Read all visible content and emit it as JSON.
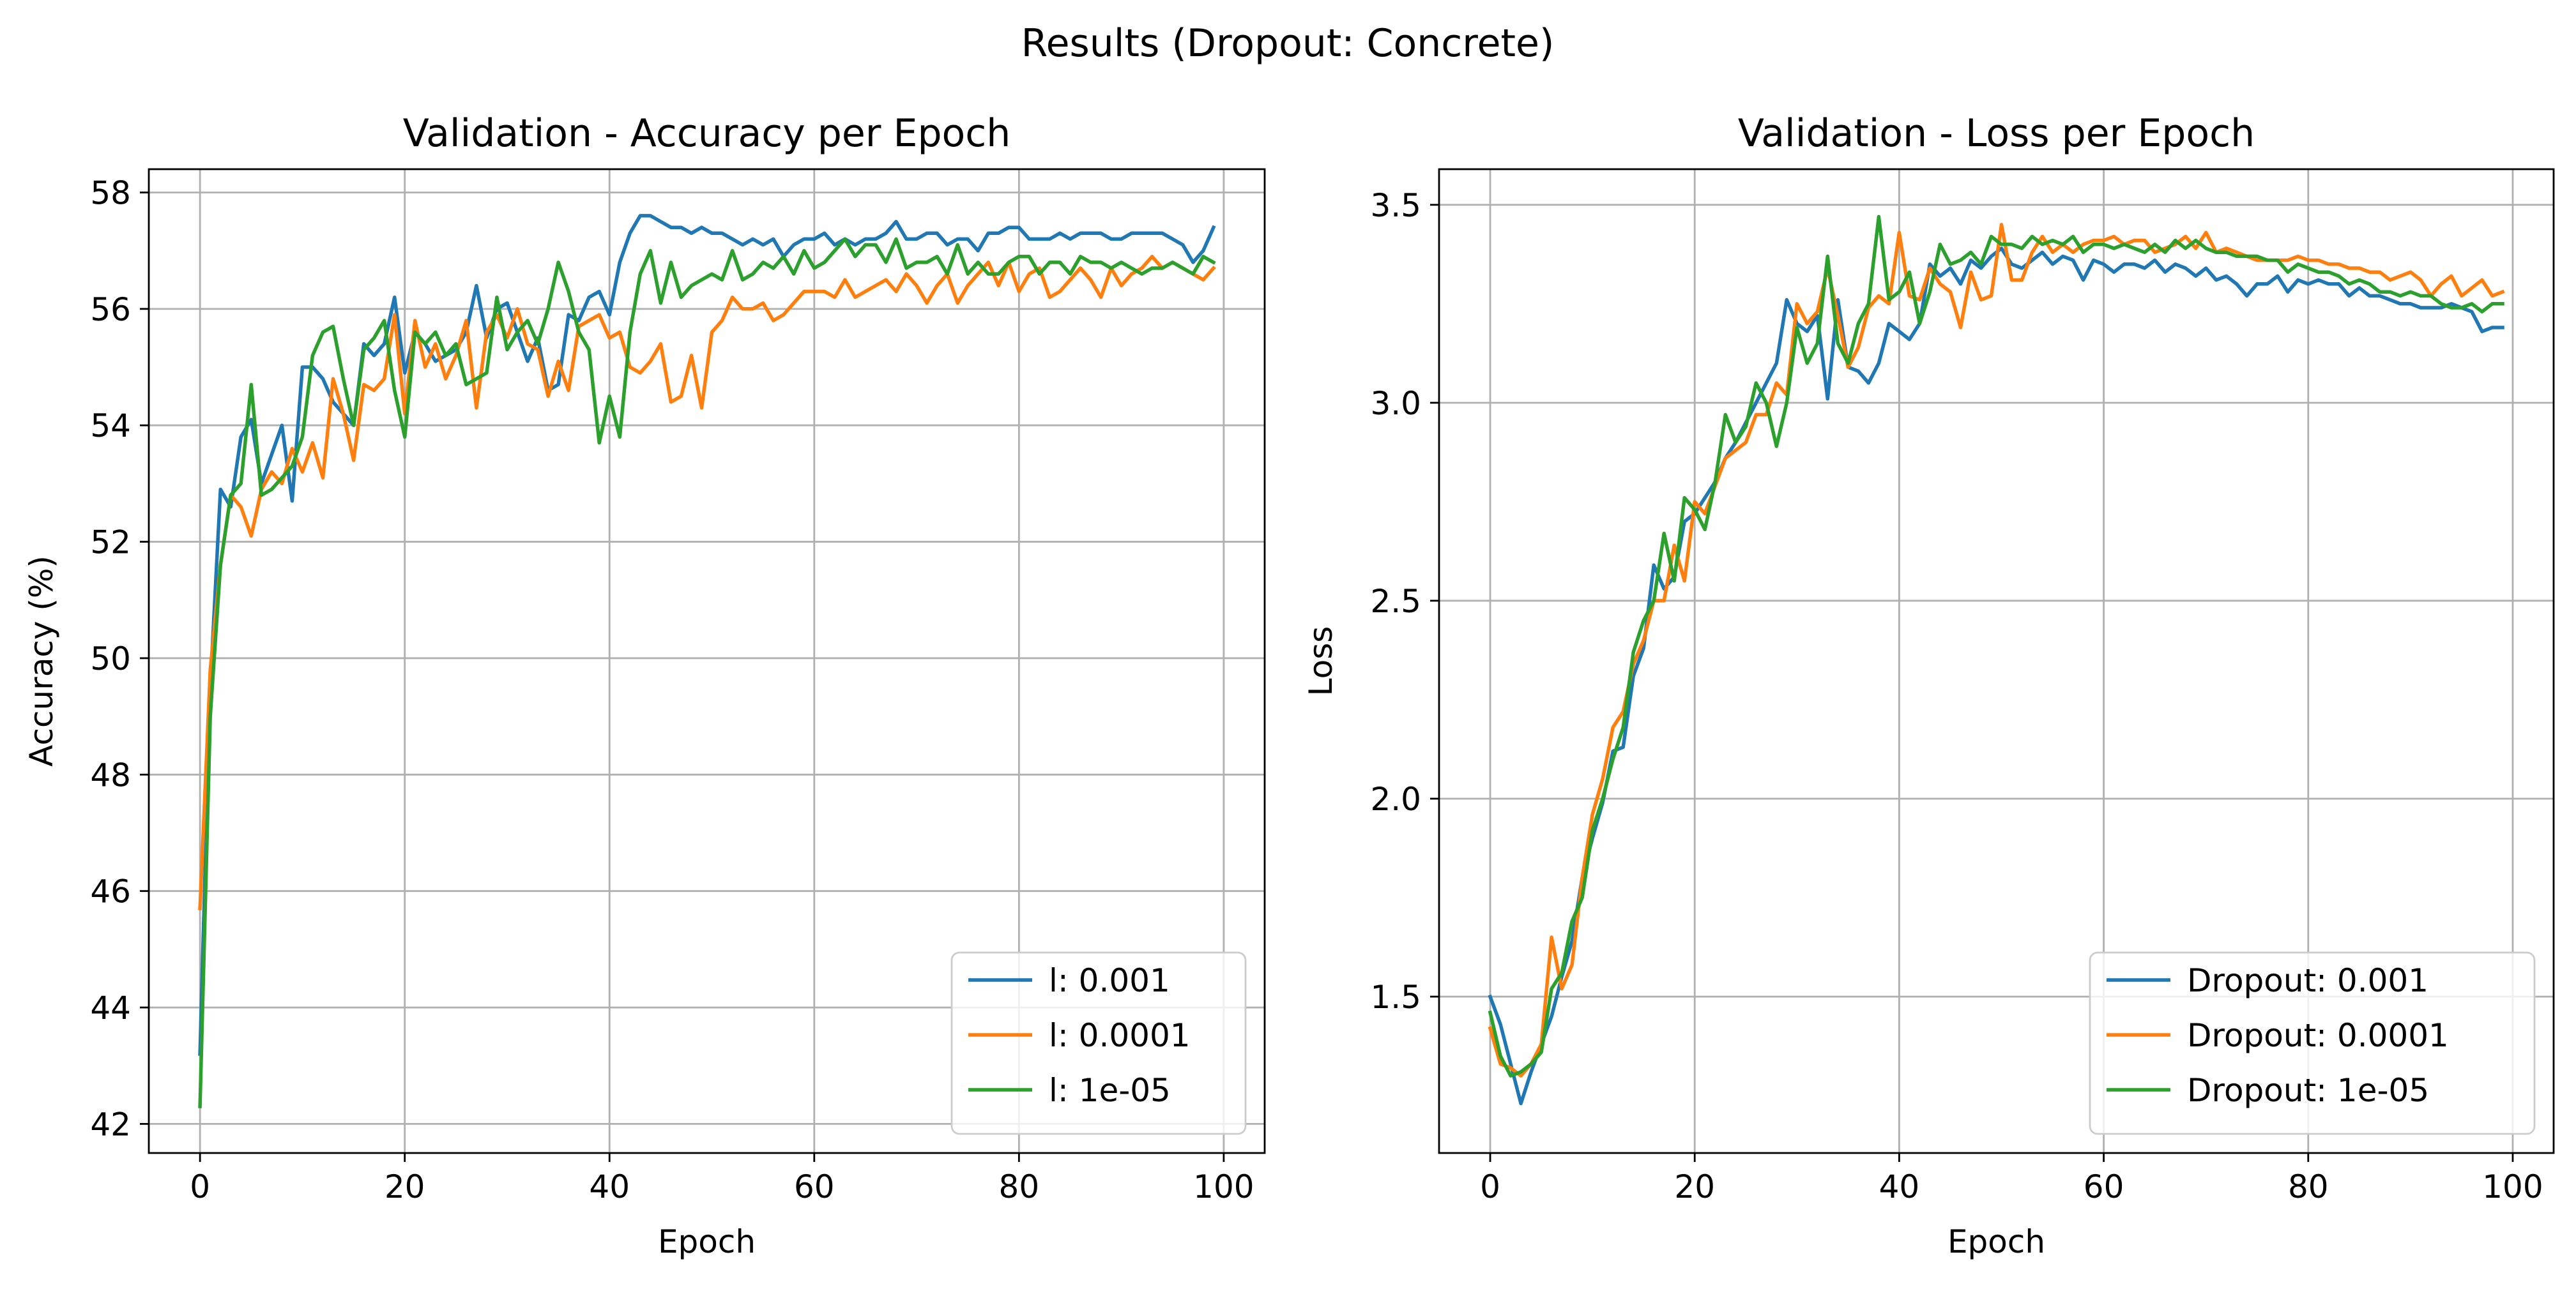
{
  "figure": {
    "suptitle": "Results (Dropout: Concrete)"
  },
  "chart_data": [
    {
      "type": "line",
      "title": "Validation - Accuracy per Epoch",
      "xlabel": "Epoch",
      "ylabel": "Accuracy (%)",
      "xlim": [
        -5,
        104
      ],
      "ylim": [
        41.5,
        58.4
      ],
      "xticks": [
        0,
        20,
        40,
        60,
        80,
        100
      ],
      "yticks": [
        42,
        44,
        46,
        48,
        50,
        52,
        54,
        56,
        58
      ],
      "grid": true,
      "legend_position": "lower-right",
      "x_start": 0,
      "series": [
        {
          "name": "l: 0.001",
          "color": "#1f77b4",
          "values": [
            43.2,
            49.5,
            52.9,
            52.6,
            53.8,
            54.1,
            53.0,
            53.5,
            54.0,
            52.7,
            55.0,
            55.0,
            54.8,
            54.4,
            54.2,
            54.0,
            55.4,
            55.2,
            55.4,
            56.2,
            54.9,
            55.6,
            55.4,
            55.1,
            55.2,
            55.3,
            55.6,
            56.4,
            55.5,
            56.0,
            56.1,
            55.6,
            55.1,
            55.5,
            54.6,
            54.7,
            55.9,
            55.8,
            56.2,
            56.3,
            55.9,
            56.8,
            57.3,
            57.6,
            57.6,
            57.5,
            57.4,
            57.4,
            57.3,
            57.4,
            57.3,
            57.3,
            57.2,
            57.1,
            57.2,
            57.1,
            57.2,
            56.9,
            57.1,
            57.2,
            57.2,
            57.3,
            57.1,
            57.2,
            57.1,
            57.2,
            57.2,
            57.3,
            57.5,
            57.2,
            57.2,
            57.3,
            57.3,
            57.1,
            57.2,
            57.2,
            57.0,
            57.3,
            57.3,
            57.4,
            57.4,
            57.2,
            57.2,
            57.2,
            57.3,
            57.2,
            57.3,
            57.3,
            57.3,
            57.2,
            57.2,
            57.3,
            57.3,
            57.3,
            57.3,
            57.2,
            57.1,
            56.8,
            57.0,
            57.4
          ]
        },
        {
          "name": "l: 0.0001",
          "color": "#ff7f0e",
          "values": [
            45.7,
            49.8,
            51.6,
            52.8,
            52.6,
            52.1,
            52.9,
            53.2,
            53.0,
            53.6,
            53.2,
            53.7,
            53.1,
            54.8,
            54.2,
            53.4,
            54.7,
            54.6,
            54.8,
            55.9,
            54.2,
            55.8,
            55.0,
            55.4,
            54.8,
            55.2,
            55.8,
            54.3,
            55.6,
            55.9,
            55.5,
            56.0,
            55.4,
            55.3,
            54.5,
            55.1,
            54.6,
            55.7,
            55.8,
            55.9,
            55.5,
            55.6,
            55.0,
            54.9,
            55.1,
            55.4,
            54.4,
            54.5,
            55.2,
            54.3,
            55.6,
            55.8,
            56.2,
            56.0,
            56.0,
            56.1,
            55.8,
            55.9,
            56.1,
            56.3,
            56.3,
            56.3,
            56.2,
            56.5,
            56.2,
            56.3,
            56.4,
            56.5,
            56.3,
            56.6,
            56.4,
            56.1,
            56.4,
            56.6,
            56.1,
            56.4,
            56.6,
            56.8,
            56.4,
            56.8,
            56.3,
            56.6,
            56.7,
            56.2,
            56.3,
            56.5,
            56.7,
            56.5,
            56.2,
            56.7,
            56.4,
            56.6,
            56.7,
            56.9,
            56.7,
            56.8,
            56.7,
            56.6,
            56.5,
            56.7
          ]
        },
        {
          "name": "l: 1e-05",
          "color": "#2ca02c",
          "values": [
            42.3,
            49.0,
            51.6,
            52.8,
            53.0,
            54.7,
            52.8,
            52.9,
            53.1,
            53.3,
            53.8,
            55.2,
            55.6,
            55.7,
            54.8,
            54.0,
            55.3,
            55.5,
            55.8,
            54.6,
            53.8,
            55.6,
            55.4,
            55.6,
            55.2,
            55.4,
            54.7,
            54.8,
            54.9,
            56.2,
            55.3,
            55.6,
            55.8,
            55.4,
            56.0,
            56.8,
            56.3,
            55.6,
            55.3,
            53.7,
            54.5,
            53.8,
            55.6,
            56.6,
            57.0,
            56.1,
            56.8,
            56.2,
            56.4,
            56.5,
            56.6,
            56.5,
            57.0,
            56.5,
            56.6,
            56.8,
            56.7,
            56.9,
            56.6,
            57.0,
            56.7,
            56.8,
            57.0,
            57.2,
            56.9,
            57.1,
            57.1,
            56.8,
            57.2,
            56.7,
            56.8,
            56.8,
            56.9,
            56.6,
            57.1,
            56.6,
            56.8,
            56.6,
            56.6,
            56.8,
            56.9,
            56.9,
            56.6,
            56.8,
            56.8,
            56.6,
            56.9,
            56.8,
            56.8,
            56.7,
            56.8,
            56.7,
            56.6,
            56.7,
            56.7,
            56.8,
            56.7,
            56.6,
            56.9,
            56.8
          ]
        }
      ]
    },
    {
      "type": "line",
      "title": "Validation - Loss per Epoch",
      "xlabel": "Epoch",
      "ylabel": "Loss",
      "xlim": [
        -5,
        104
      ],
      "ylim": [
        1.105,
        3.59
      ],
      "xticks": [
        0,
        20,
        40,
        60,
        80,
        100
      ],
      "yticks": [
        1.5,
        2.0,
        2.5,
        3.0,
        3.5
      ],
      "grid": true,
      "legend_position": "lower-right",
      "x_start": 0,
      "series": [
        {
          "name": "Dropout: 0.001",
          "color": "#1f77b4",
          "values": [
            1.5,
            1.43,
            1.33,
            1.23,
            1.31,
            1.38,
            1.45,
            1.55,
            1.64,
            1.8,
            1.9,
            1.99,
            2.12,
            2.13,
            2.31,
            2.38,
            2.59,
            2.53,
            2.56,
            2.7,
            2.72,
            2.76,
            2.8,
            2.86,
            2.9,
            2.95,
            3.0,
            3.05,
            3.1,
            3.26,
            3.2,
            3.18,
            3.22,
            3.01,
            3.26,
            3.09,
            3.08,
            3.05,
            3.1,
            3.2,
            3.18,
            3.16,
            3.2,
            3.35,
            3.32,
            3.34,
            3.3,
            3.36,
            3.34,
            3.37,
            3.39,
            3.35,
            3.34,
            3.36,
            3.38,
            3.35,
            3.37,
            3.36,
            3.31,
            3.36,
            3.35,
            3.33,
            3.35,
            3.35,
            3.34,
            3.36,
            3.33,
            3.35,
            3.34,
            3.32,
            3.34,
            3.31,
            3.32,
            3.3,
            3.27,
            3.3,
            3.3,
            3.32,
            3.28,
            3.31,
            3.3,
            3.31,
            3.3,
            3.3,
            3.27,
            3.29,
            3.27,
            3.27,
            3.26,
            3.25,
            3.25,
            3.24,
            3.24,
            3.24,
            3.25,
            3.24,
            3.23,
            3.18,
            3.19,
            3.19
          ]
        },
        {
          "name": "Dropout: 0.0001",
          "color": "#ff7f0e",
          "values": [
            1.42,
            1.33,
            1.32,
            1.3,
            1.33,
            1.38,
            1.65,
            1.52,
            1.58,
            1.8,
            1.96,
            2.05,
            2.18,
            2.22,
            2.34,
            2.4,
            2.5,
            2.5,
            2.64,
            2.55,
            2.75,
            2.72,
            2.79,
            2.86,
            2.88,
            2.9,
            2.97,
            2.97,
            3.05,
            3.02,
            3.25,
            3.2,
            3.23,
            3.34,
            3.22,
            3.09,
            3.14,
            3.24,
            3.27,
            3.25,
            3.43,
            3.27,
            3.26,
            3.34,
            3.3,
            3.28,
            3.19,
            3.33,
            3.26,
            3.27,
            3.45,
            3.31,
            3.31,
            3.38,
            3.42,
            3.38,
            3.4,
            3.38,
            3.4,
            3.41,
            3.41,
            3.42,
            3.4,
            3.41,
            3.41,
            3.38,
            3.39,
            3.4,
            3.42,
            3.39,
            3.43,
            3.38,
            3.39,
            3.38,
            3.37,
            3.36,
            3.36,
            3.36,
            3.36,
            3.37,
            3.36,
            3.36,
            3.35,
            3.35,
            3.34,
            3.34,
            3.33,
            3.33,
            3.31,
            3.32,
            3.33,
            3.31,
            3.27,
            3.3,
            3.32,
            3.27,
            3.29,
            3.31,
            3.27,
            3.28
          ]
        },
        {
          "name": "Dropout: 1e-05",
          "color": "#2ca02c",
          "values": [
            1.46,
            1.35,
            1.3,
            1.31,
            1.33,
            1.36,
            1.52,
            1.56,
            1.69,
            1.75,
            1.92,
            2.0,
            2.1,
            2.18,
            2.37,
            2.45,
            2.5,
            2.67,
            2.55,
            2.76,
            2.73,
            2.68,
            2.8,
            2.97,
            2.9,
            2.94,
            3.05,
            3.0,
            2.89,
            3.0,
            3.19,
            3.1,
            3.15,
            3.37,
            3.15,
            3.1,
            3.2,
            3.25,
            3.47,
            3.26,
            3.28,
            3.33,
            3.2,
            3.28,
            3.4,
            3.35,
            3.36,
            3.38,
            3.35,
            3.42,
            3.4,
            3.4,
            3.39,
            3.42,
            3.4,
            3.41,
            3.4,
            3.42,
            3.38,
            3.4,
            3.4,
            3.39,
            3.4,
            3.39,
            3.38,
            3.4,
            3.38,
            3.41,
            3.39,
            3.41,
            3.39,
            3.38,
            3.38,
            3.37,
            3.37,
            3.37,
            3.36,
            3.36,
            3.33,
            3.35,
            3.34,
            3.33,
            3.33,
            3.32,
            3.3,
            3.31,
            3.3,
            3.28,
            3.28,
            3.27,
            3.28,
            3.27,
            3.27,
            3.25,
            3.24,
            3.24,
            3.25,
            3.23,
            3.25,
            3.25
          ]
        }
      ]
    }
  ]
}
